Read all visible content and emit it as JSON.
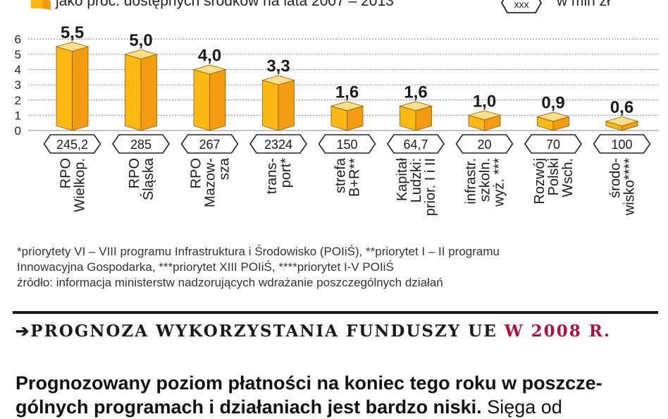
{
  "legend": {
    "percent_label": "jako proc. dostępnych środków na lata 2007 – 2013",
    "amount_symbol": "xxx",
    "amount_label": "w mln zł"
  },
  "chart_data": {
    "type": "bar",
    "categories": [
      [
        "RPO",
        "Wielkop."
      ],
      [
        "RPO",
        "Śląska"
      ],
      [
        "RPO",
        "Mazow-",
        "sza"
      ],
      [
        "trans-",
        "port*"
      ],
      [
        "strefa",
        "B+R**"
      ],
      [
        "Kapitał",
        "Ludzki:",
        "prior. I i II"
      ],
      [
        "infrastr.",
        "szkoln.",
        "wyż. ***"
      ],
      [
        "Rozwój",
        "Polski",
        "Wsch."
      ],
      [
        "środo-",
        "wisko****"
      ]
    ],
    "values": [
      5.5,
      5.0,
      4.0,
      3.3,
      1.6,
      1.6,
      1.0,
      0.9,
      0.6
    ],
    "value_labels": [
      "5,5",
      "5,0",
      "4,0",
      "3,3",
      "1,6",
      "1,6",
      "1,0",
      "0,9",
      "0,6"
    ],
    "amounts": [
      "245,2",
      "285",
      "267",
      "2324",
      "150",
      "64,7",
      "20",
      "70",
      "100"
    ],
    "y_ticks": [
      "0",
      "1",
      "2",
      "3",
      "4",
      "5",
      "6"
    ],
    "ylim": [
      0,
      6
    ],
    "grid": true,
    "colors": {
      "bar": "#fdb813",
      "bar_side": "#f39c12",
      "bar_top": "#ffe08a",
      "grid": "#8a8a8a"
    }
  },
  "notes": {
    "line1": "*priorytety VI – VIII programu Infrastruktura i Środowisko (POIiŚ), **priorytet I – II programu",
    "line2": "Innowacyjna Gospodarka, ***priorytet XIII POIiŚ, ****priorytet I-V POIiŚ",
    "line3": "źródło: informacja ministerstw nadzorujących wdrażanie poszczególnych działań"
  },
  "section": {
    "arrow": "➔",
    "title": "PROGNOZA WYKORZYSTANIA FUNDUSZY UE",
    "accent": "W 2008 R."
  },
  "lead": {
    "bold_text": "Prognozowany poziom płatności na koniec tego roku w poszcze-gólnych programach i działaniach jest bardzo niski.",
    "normal_text": "Sięga od"
  }
}
